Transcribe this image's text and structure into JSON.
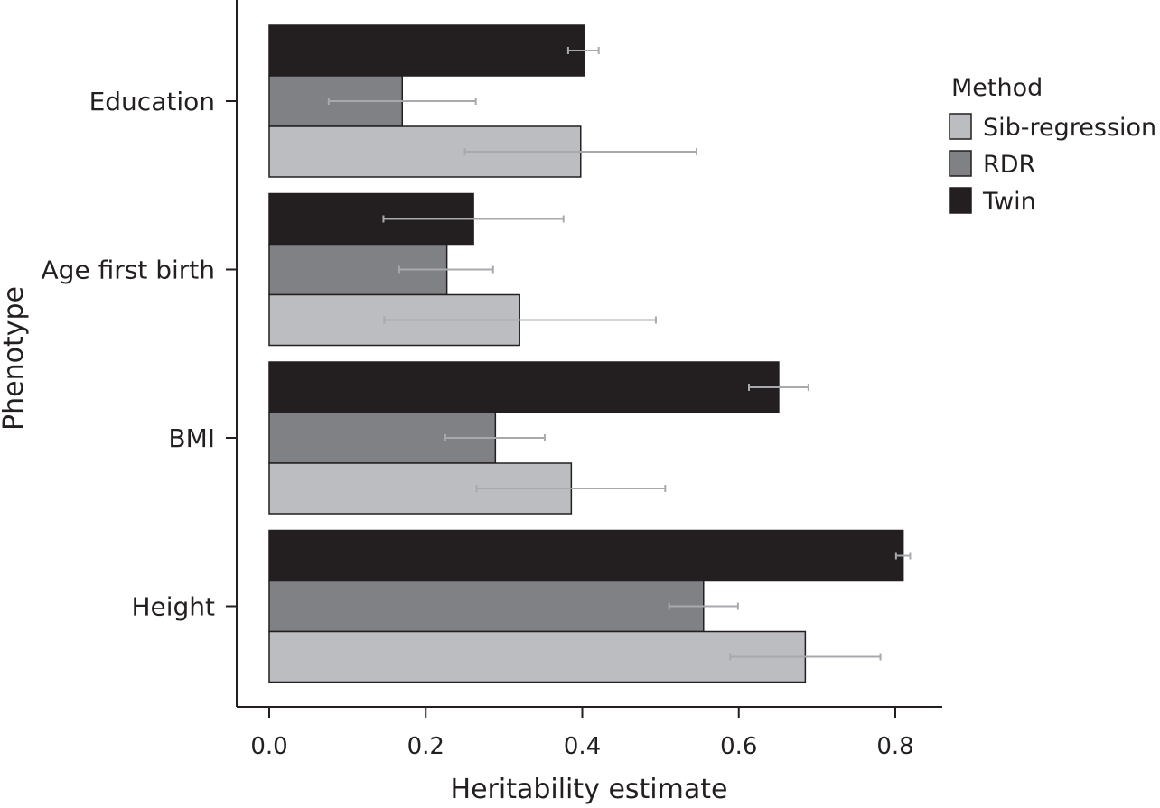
{
  "chart_data": {
    "type": "bar",
    "orientation": "horizontal",
    "title": "",
    "xlabel": "Heritability estimate",
    "ylabel": "Phenotype",
    "xlim": [
      -0.042,
      0.86
    ],
    "xticks": [
      0.0,
      0.2,
      0.4,
      0.6,
      0.8
    ],
    "xtick_labels": [
      "0.0",
      "0.2",
      "0.4",
      "0.6",
      "0.8"
    ],
    "grid": false,
    "legend": {
      "title": "Method",
      "position": "right",
      "entries": [
        "Sib-regression",
        "RDR",
        "Twin"
      ]
    },
    "categories": [
      "Education",
      "Age first birth",
      "BMI",
      "Height"
    ],
    "series": [
      {
        "name": "Twin",
        "color": "#231f20",
        "values": [
          0.402,
          0.261,
          0.651,
          0.81
        ],
        "err_low": [
          0.382,
          0.146,
          0.613,
          0.801
        ],
        "err_high": [
          0.421,
          0.376,
          0.689,
          0.819
        ]
      },
      {
        "name": "RDR",
        "color": "#808184",
        "values": [
          0.17,
          0.227,
          0.289,
          0.555
        ],
        "err_low": [
          0.076,
          0.166,
          0.225,
          0.511
        ],
        "err_high": [
          0.264,
          0.286,
          0.352,
          0.599
        ]
      },
      {
        "name": "Sib-regression",
        "color": "#bcbdc0",
        "values": [
          0.398,
          0.32,
          0.386,
          0.685
        ],
        "err_low": [
          0.25,
          0.147,
          0.265,
          0.589
        ],
        "err_high": [
          0.546,
          0.494,
          0.506,
          0.781
        ]
      }
    ]
  }
}
